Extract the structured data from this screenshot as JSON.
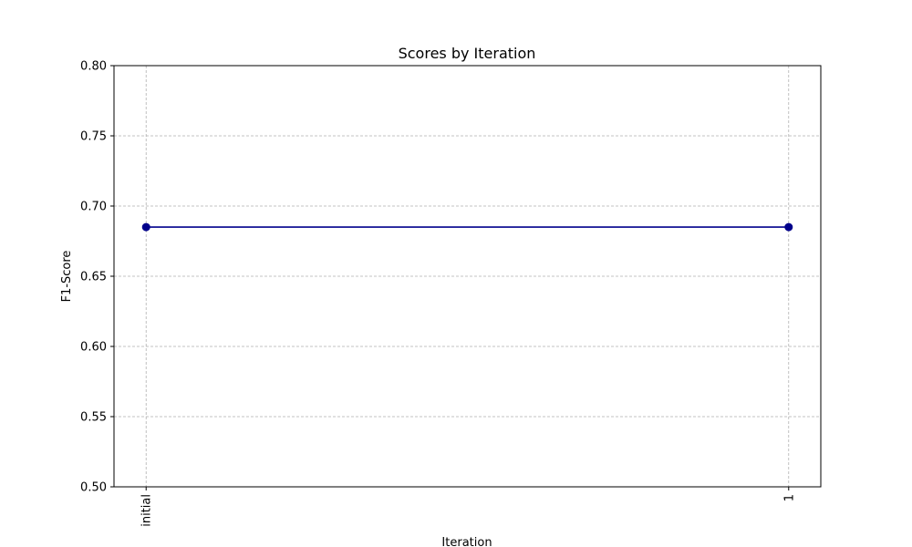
{
  "chart_data": {
    "type": "line",
    "title": "Scores by Iteration",
    "xlabel": "Iteration",
    "ylabel": "F1-Score",
    "categories": [
      "initial",
      "1"
    ],
    "series": [
      {
        "values": [
          0.685,
          0.685
        ],
        "color": "#00008b",
        "marker": "circle"
      }
    ],
    "ylim": [
      0.5,
      0.8
    ],
    "yticks": [
      "0.50",
      "0.55",
      "0.60",
      "0.65",
      "0.70",
      "0.75",
      "0.80"
    ],
    "grid": true,
    "xtick_rotation": "vertical"
  }
}
